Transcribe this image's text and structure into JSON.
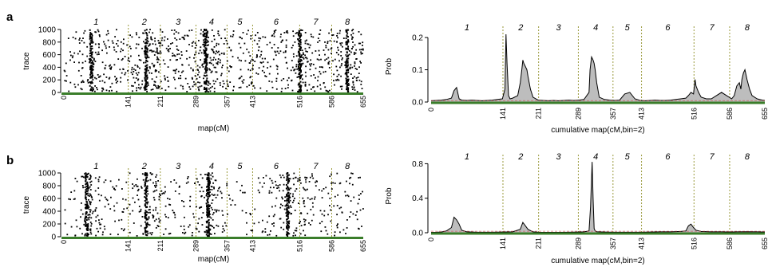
{
  "panel_labels": [
    "a",
    "b"
  ],
  "colors": {
    "points": "#000000",
    "boundary": "#9a9a3c",
    "baseline": "#3a7d2a",
    "prob_fill": "#bdbdbd",
    "prob_line": "#000000",
    "threshold": "#d04040"
  },
  "chart_data": [
    {
      "panel": "a",
      "type": "scatter",
      "title": "",
      "xlabel": "map(cM)",
      "ylabel": "trace",
      "xlim": [
        0,
        655
      ],
      "ylim": [
        0,
        1000
      ],
      "yticks": [
        0,
        200,
        400,
        600,
        800,
        1000
      ],
      "xticks": [
        0,
        141,
        211,
        289,
        357,
        413,
        516,
        586,
        655
      ],
      "chromosome_labels": [
        "1",
        "2",
        "3",
        "4",
        "5",
        "6",
        "7",
        "8"
      ],
      "chromosome_boundaries": [
        141,
        211,
        289,
        357,
        413,
        516,
        586
      ],
      "point_density_profile_x": [
        0,
        20,
        40,
        60,
        80,
        100,
        120,
        141,
        160,
        180,
        200,
        211,
        230,
        250,
        270,
        289,
        300,
        310,
        320,
        330,
        340,
        357,
        380,
        400,
        413,
        430,
        450,
        470,
        490,
        516,
        530,
        550,
        570,
        586,
        600,
        620,
        640,
        655
      ],
      "point_density_profile_w": [
        2,
        3,
        4,
        6,
        4,
        4,
        3,
        4,
        4,
        7,
        5,
        4,
        4,
        4,
        4,
        3,
        4,
        6,
        4,
        3,
        3,
        3,
        3,
        3,
        3,
        3,
        4,
        4,
        5,
        6,
        4,
        4,
        4,
        3,
        5,
        6,
        4,
        3
      ]
    },
    {
      "panel": "a",
      "type": "area",
      "title": "",
      "xlabel": "cumulative map(cM,bin=2)",
      "ylabel": "Prob",
      "xlim": [
        0,
        655
      ],
      "ylim": [
        0,
        0.22
      ],
      "yticks": [
        0.0,
        0.1,
        0.2
      ],
      "xticks": [
        0,
        141,
        211,
        289,
        357,
        413,
        516,
        586,
        655
      ],
      "chromosome_labels": [
        "1",
        "2",
        "3",
        "4",
        "5",
        "6",
        "7",
        "8"
      ],
      "chromosome_boundaries": [
        141,
        211,
        289,
        357,
        413,
        516,
        586
      ],
      "x": [
        0,
        10,
        20,
        30,
        40,
        45,
        50,
        55,
        60,
        70,
        80,
        90,
        100,
        110,
        120,
        130,
        140,
        145,
        147,
        149,
        152,
        155,
        160,
        170,
        175,
        178,
        180,
        182,
        185,
        188,
        190,
        195,
        200,
        210,
        220,
        230,
        240,
        250,
        260,
        270,
        280,
        290,
        300,
        310,
        312,
        315,
        318,
        320,
        322,
        325,
        330,
        340,
        350,
        360,
        370,
        380,
        390,
        400,
        410,
        420,
        430,
        440,
        450,
        460,
        470,
        480,
        490,
        500,
        505,
        510,
        515,
        518,
        520,
        525,
        530,
        540,
        550,
        560,
        570,
        580,
        590,
        595,
        600,
        605,
        608,
        610,
        613,
        616,
        620,
        625,
        630,
        640,
        650,
        655
      ],
      "y": [
        0.004,
        0.005,
        0.006,
        0.008,
        0.012,
        0.035,
        0.045,
        0.01,
        0.006,
        0.005,
        0.006,
        0.005,
        0.004,
        0.005,
        0.006,
        0.008,
        0.01,
        0.04,
        0.21,
        0.12,
        0.02,
        0.01,
        0.012,
        0.02,
        0.06,
        0.1,
        0.13,
        0.12,
        0.11,
        0.1,
        0.08,
        0.04,
        0.015,
        0.006,
        0.005,
        0.004,
        0.005,
        0.004,
        0.005,
        0.006,
        0.005,
        0.006,
        0.008,
        0.03,
        0.1,
        0.14,
        0.13,
        0.12,
        0.1,
        0.06,
        0.015,
        0.008,
        0.006,
        0.005,
        0.006,
        0.025,
        0.03,
        0.01,
        0.005,
        0.004,
        0.005,
        0.006,
        0.005,
        0.005,
        0.006,
        0.008,
        0.01,
        0.012,
        0.02,
        0.03,
        0.025,
        0.07,
        0.05,
        0.03,
        0.015,
        0.01,
        0.01,
        0.02,
        0.03,
        0.02,
        0.01,
        0.02,
        0.05,
        0.06,
        0.04,
        0.07,
        0.09,
        0.1,
        0.07,
        0.04,
        0.02,
        0.01,
        0.006,
        0.005
      ]
    },
    {
      "panel": "b",
      "type": "scatter",
      "title": "",
      "xlabel": "map(cM)",
      "ylabel": "trace",
      "xlim": [
        0,
        655
      ],
      "ylim": [
        0,
        1000
      ],
      "yticks": [
        0,
        200,
        400,
        600,
        800,
        1000
      ],
      "xticks": [
        0,
        141,
        211,
        289,
        357,
        413,
        516,
        586,
        655
      ],
      "chromosome_labels": [
        "1",
        "2",
        "3",
        "4",
        "5",
        "6",
        "7",
        "8"
      ],
      "chromosome_boundaries": [
        141,
        211,
        289,
        357,
        413,
        516,
        586
      ],
      "point_density_profile_x": [
        0,
        20,
        40,
        50,
        60,
        80,
        100,
        120,
        141,
        160,
        180,
        200,
        211,
        230,
        250,
        270,
        289,
        300,
        315,
        320,
        330,
        340,
        357,
        380,
        400,
        413,
        430,
        450,
        470,
        490,
        516,
        530,
        550,
        570,
        586,
        600,
        620,
        640,
        655
      ],
      "point_density_profile_w": [
        1,
        2,
        3,
        8,
        4,
        2,
        2,
        2,
        2,
        3,
        6,
        3,
        2,
        2,
        2,
        2,
        2,
        3,
        9,
        4,
        2,
        2,
        1,
        1,
        1,
        1,
        2,
        3,
        4,
        6,
        4,
        3,
        2,
        2,
        2,
        2,
        2,
        2,
        1
      ]
    },
    {
      "panel": "b",
      "type": "area",
      "title": "",
      "xlabel": "cumulative map(cM,bin=2)",
      "ylabel": "Prob",
      "xlim": [
        0,
        655
      ],
      "ylim": [
        0,
        0.85
      ],
      "yticks": [
        0.0,
        0.4,
        0.8
      ],
      "xticks": [
        0,
        141,
        211,
        289,
        357,
        413,
        516,
        586,
        655
      ],
      "chromosome_labels": [
        "1",
        "2",
        "3",
        "4",
        "5",
        "6",
        "7",
        "8"
      ],
      "chromosome_boundaries": [
        141,
        211,
        289,
        357,
        413,
        516,
        586
      ],
      "x": [
        0,
        10,
        20,
        30,
        40,
        45,
        50,
        55,
        60,
        70,
        80,
        90,
        100,
        120,
        141,
        160,
        175,
        180,
        185,
        190,
        200,
        211,
        230,
        250,
        270,
        289,
        300,
        310,
        313,
        316,
        318,
        320,
        322,
        325,
        330,
        340,
        357,
        380,
        400,
        413,
        430,
        450,
        470,
        490,
        500,
        505,
        510,
        515,
        520,
        530,
        550,
        570,
        586,
        600,
        620,
        640,
        655
      ],
      "y": [
        0.005,
        0.006,
        0.008,
        0.02,
        0.06,
        0.18,
        0.15,
        0.1,
        0.03,
        0.01,
        0.008,
        0.006,
        0.006,
        0.006,
        0.008,
        0.01,
        0.04,
        0.12,
        0.08,
        0.04,
        0.01,
        0.006,
        0.005,
        0.005,
        0.006,
        0.008,
        0.01,
        0.02,
        0.3,
        0.82,
        0.4,
        0.05,
        0.02,
        0.012,
        0.01,
        0.008,
        0.006,
        0.006,
        0.006,
        0.006,
        0.008,
        0.01,
        0.01,
        0.015,
        0.02,
        0.08,
        0.1,
        0.06,
        0.03,
        0.015,
        0.01,
        0.01,
        0.008,
        0.01,
        0.012,
        0.01,
        0.008
      ]
    }
  ]
}
